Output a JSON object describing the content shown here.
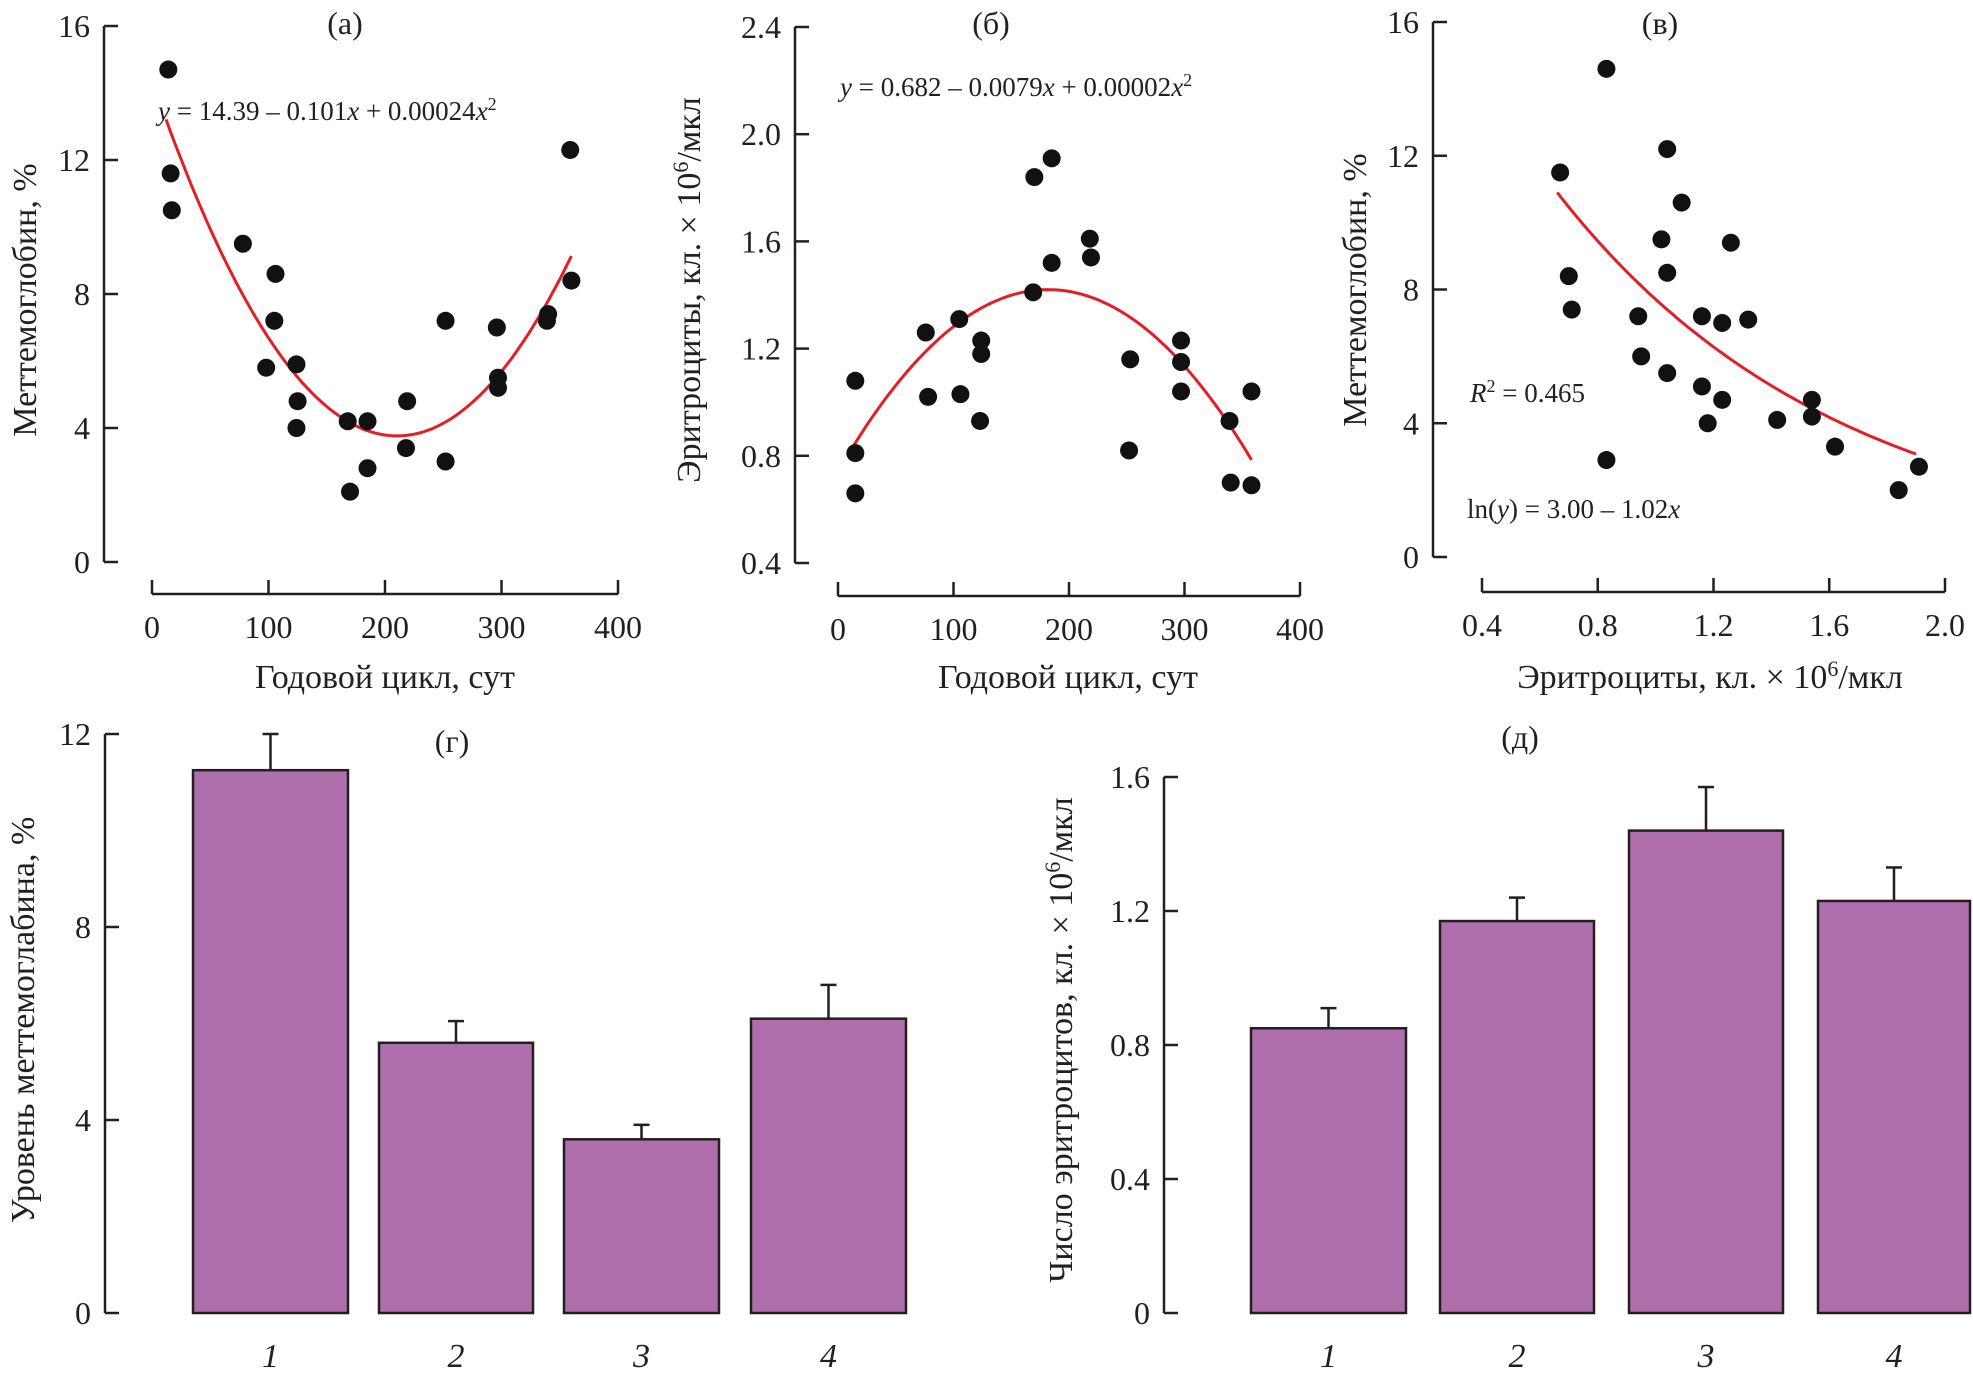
{
  "colors": {
    "points": "#111111",
    "fit_line": "#e31e24",
    "bars": "#ae6fac",
    "axis": "#231f20"
  },
  "chart_data": [
    {
      "id": "a",
      "type": "scatter",
      "panel_label": "(а)",
      "xlabel": "Годовой цикл, сут",
      "ylabel": "Меттемоглобин, %",
      "xlim": [
        0,
        400
      ],
      "ylim": [
        0,
        16
      ],
      "xticks": [
        "0",
        "100",
        "200",
        "300",
        "400"
      ],
      "yticks": [
        "0",
        "4",
        "8",
        "12",
        "16"
      ],
      "annotation": {
        "prefix": "y",
        "text": " = 14.39 – 0.101",
        "x_var": "x",
        "mid": " + 0.00024",
        "x2_var": "x",
        "sup": "2"
      },
      "fit": {
        "kind": "poly2",
        "coef": [
          14.39,
          -0.101,
          0.00024
        ],
        "x_range": [
          12,
          360
        ]
      },
      "points": [
        [
          14,
          14.7
        ],
        [
          16,
          11.6
        ],
        [
          17,
          10.5
        ],
        [
          78,
          9.5
        ],
        [
          106,
          8.6
        ],
        [
          105,
          7.2
        ],
        [
          98,
          5.8
        ],
        [
          124,
          5.9
        ],
        [
          125,
          4.8
        ],
        [
          124,
          4.0
        ],
        [
          168,
          4.2
        ],
        [
          185,
          4.2
        ],
        [
          170,
          2.1
        ],
        [
          185,
          2.8
        ],
        [
          219,
          4.8
        ],
        [
          218,
          3.4
        ],
        [
          252,
          7.2
        ],
        [
          252,
          3.0
        ],
        [
          296,
          7.0
        ],
        [
          297,
          5.5
        ],
        [
          297,
          5.2
        ],
        [
          340,
          7.4
        ],
        [
          339,
          7.2
        ],
        [
          359,
          12.3
        ],
        [
          360,
          8.4
        ]
      ]
    },
    {
      "id": "b",
      "type": "scatter",
      "panel_label": "(б)",
      "xlabel": "Годовой цикл, сут",
      "ylabel": "Эритроциты, кл. × 10",
      "ylabel_sup": "6",
      "ylabel_tail": "/мкл",
      "xlim": [
        0,
        400
      ],
      "ylim": [
        0.4,
        2.4
      ],
      "xticks": [
        "0",
        "100",
        "200",
        "300",
        "400"
      ],
      "yticks": [
        "0.4",
        "0.8",
        "1.2",
        "1.6",
        "2.0",
        "2.4"
      ],
      "annotation": {
        "prefix": "y",
        "text": " = 0.682 – 0.0079",
        "x_var": "x",
        "mid": " + 0.00002",
        "x2_var": "x",
        "sup": "2"
      },
      "fit": {
        "kind": "curve",
        "x_range": [
          12,
          358
        ]
      },
      "points": [
        [
          15,
          1.08
        ],
        [
          15,
          0.81
        ],
        [
          15,
          0.66
        ],
        [
          76,
          1.26
        ],
        [
          78,
          1.02
        ],
        [
          105,
          1.31
        ],
        [
          106,
          1.03
        ],
        [
          124,
          1.23
        ],
        [
          124,
          1.18
        ],
        [
          123,
          0.93
        ],
        [
          170,
          1.84
        ],
        [
          185,
          1.91
        ],
        [
          169,
          1.41
        ],
        [
          185,
          1.52
        ],
        [
          218,
          1.61
        ],
        [
          219,
          1.54
        ],
        [
          253,
          1.16
        ],
        [
          252,
          0.82
        ],
        [
          297,
          1.23
        ],
        [
          297,
          1.15
        ],
        [
          297,
          1.04
        ],
        [
          339,
          0.93
        ],
        [
          340,
          0.7
        ],
        [
          358,
          1.04
        ],
        [
          358,
          0.69
        ]
      ]
    },
    {
      "id": "v",
      "type": "scatter",
      "panel_label": "(в)",
      "xlabel": "Эритроциты, кл. × 10",
      "xlabel_sup": "6",
      "xlabel_tail": "/мкл",
      "ylabel": "Меттемоглобин, %",
      "xlim": [
        0.4,
        2.0
      ],
      "ylim": [
        0,
        16
      ],
      "xticks": [
        "0.4",
        "0.8",
        "1.2",
        "1.6",
        "2.0"
      ],
      "yticks": [
        "0",
        "4",
        "8",
        "12",
        "16"
      ],
      "annotation_r2": {
        "label": "R",
        "sup": "2",
        "text": " = 0.465"
      },
      "annotation_eq": {
        "prefix": "ln(",
        "var": "y",
        "text": ") = 3.00 – 1.02",
        "x_var": "x"
      },
      "fit": {
        "kind": "exp",
        "a": 3.0,
        "b": -1.02,
        "x_range": [
          0.66,
          1.9
        ]
      },
      "points": [
        [
          0.67,
          11.5
        ],
        [
          0.83,
          14.6
        ],
        [
          0.7,
          8.4
        ],
        [
          0.71,
          7.4
        ],
        [
          0.83,
          2.9
        ],
        [
          0.94,
          7.2
        ],
        [
          0.95,
          6.0
        ],
        [
          1.02,
          9.5
        ],
        [
          1.04,
          8.5
        ],
        [
          1.04,
          12.2
        ],
        [
          1.04,
          5.5
        ],
        [
          1.09,
          10.6
        ],
        [
          1.16,
          7.2
        ],
        [
          1.16,
          5.1
        ],
        [
          1.18,
          4.0
        ],
        [
          1.23,
          7.0
        ],
        [
          1.23,
          4.7
        ],
        [
          1.26,
          9.4
        ],
        [
          1.32,
          7.1
        ],
        [
          1.42,
          4.1
        ],
        [
          1.54,
          4.2
        ],
        [
          1.54,
          4.7
        ],
        [
          1.62,
          3.3
        ],
        [
          1.84,
          2.0
        ],
        [
          1.91,
          2.7
        ]
      ]
    },
    {
      "id": "g",
      "type": "bar",
      "panel_label": "(г)",
      "ylabel": "Уровень меттемоглабина, %",
      "categories": [
        "1",
        "2",
        "3",
        "4"
      ],
      "values": [
        11.25,
        5.6,
        3.6,
        6.1
      ],
      "errors": [
        0.75,
        0.45,
        0.3,
        0.7
      ],
      "ylim": [
        0,
        12
      ],
      "yticks": [
        "0",
        "4",
        "8",
        "12"
      ]
    },
    {
      "id": "d",
      "type": "bar",
      "panel_label": "(д)",
      "ylabel": "Число эритроцитов, кл. × 10",
      "ylabel_sup": "6",
      "ylabel_tail": "/мкл",
      "categories": [
        "1",
        "2",
        "3",
        "4"
      ],
      "values": [
        0.85,
        1.17,
        1.44,
        1.23
      ],
      "errors": [
        0.06,
        0.07,
        0.13,
        0.1
      ],
      "ylim": [
        0,
        1.6
      ],
      "yticks": [
        "0",
        "0.4",
        "0.8",
        "1.2",
        "1.6"
      ]
    }
  ]
}
